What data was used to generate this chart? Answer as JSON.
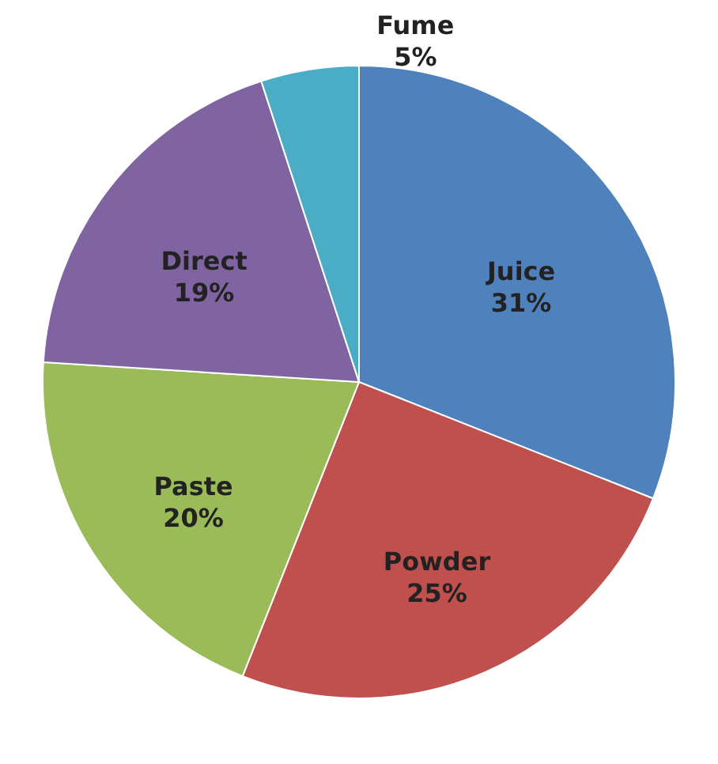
{
  "chart_data": {
    "type": "pie",
    "categories": [
      "Juice",
      "Powder",
      "Paste",
      "Direct",
      "Fume"
    ],
    "values": [
      31,
      25,
      20,
      19,
      5
    ],
    "value_labels": [
      "31%",
      "25%",
      "20%",
      "19%",
      "5%"
    ],
    "colors": [
      "#4f81bd",
      "#c0504d",
      "#9bbb59",
      "#8064a2",
      "#4bacc6"
    ]
  }
}
